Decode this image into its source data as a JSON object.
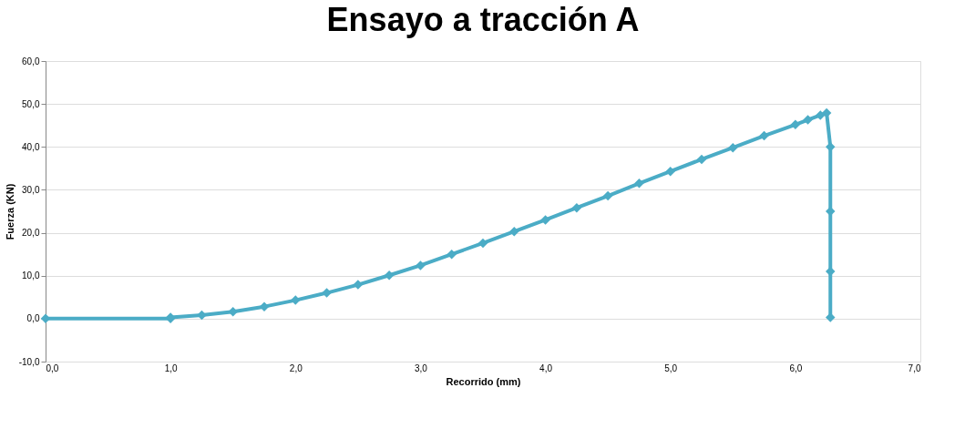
{
  "chart_data": {
    "type": "line",
    "title": "Ensayo a tracción A",
    "xlabel": "Recorrido (mm)",
    "ylabel": "Fuerza (KN)",
    "xlim": [
      0,
      7
    ],
    "ylim": [
      -10,
      60
    ],
    "xticks": [
      {
        "value": 0,
        "label": "0,0"
      },
      {
        "value": 1,
        "label": "1,0"
      },
      {
        "value": 2,
        "label": "2,0"
      },
      {
        "value": 3,
        "label": "3,0"
      },
      {
        "value": 4,
        "label": "4,0"
      },
      {
        "value": 5,
        "label": "5,0"
      },
      {
        "value": 6,
        "label": "6,0"
      },
      {
        "value": 7,
        "label": "7,0"
      }
    ],
    "yticks": [
      {
        "value": -10,
        "label": "-10,0"
      },
      {
        "value": 0,
        "label": "0,0"
      },
      {
        "value": 10,
        "label": "10,0"
      },
      {
        "value": 20,
        "label": "20,0"
      },
      {
        "value": 30,
        "label": "30,0"
      },
      {
        "value": 40,
        "label": "40,0"
      },
      {
        "value": 50,
        "label": "50,0"
      },
      {
        "value": 60,
        "label": "60,0"
      }
    ],
    "grid": "y",
    "marker": "diamond",
    "line_style": "solid",
    "series": [
      {
        "color": "#4bacc6",
        "x": [
          0,
          1.0,
          1.0,
          1.25,
          1.5,
          1.75,
          2.0,
          2.25,
          2.5,
          2.75,
          3.0,
          3.25,
          3.5,
          3.75,
          4.0,
          4.25,
          4.5,
          4.75,
          5.0,
          5.25,
          5.5,
          5.75,
          6.0,
          6.1,
          6.2,
          6.25,
          6.28,
          6.28,
          6.28,
          6.28
        ],
        "values": [
          0,
          0,
          0.3,
          0.8,
          1.6,
          2.8,
          4.3,
          6.0,
          7.9,
          10.1,
          12.4,
          15.0,
          17.6,
          20.3,
          23.0,
          25.8,
          28.6,
          31.5,
          34.3,
          37.1,
          39.8,
          42.6,
          45.2,
          46.3,
          47.4,
          47.9,
          40,
          25,
          11,
          0.3
        ]
      }
    ]
  }
}
